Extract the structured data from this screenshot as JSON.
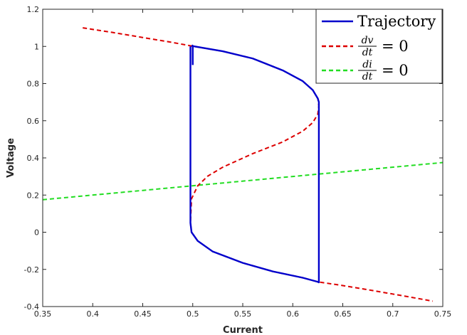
{
  "chart_data": {
    "type": "line",
    "title": "",
    "xlabel": "Current",
    "ylabel": "Voltage",
    "xlim": [
      0.35,
      0.75
    ],
    "ylim": [
      -0.4,
      1.2
    ],
    "xticks": [
      0.35,
      0.4,
      0.45,
      0.5,
      0.55,
      0.6,
      0.65,
      0.7,
      0.75
    ],
    "yticks": [
      -0.4,
      -0.2,
      0,
      0.2,
      0.4,
      0.6,
      0.8,
      1,
      1.2
    ],
    "xtick_labels": [
      "0.35",
      "0.4",
      "0.45",
      "0.5",
      "0.55",
      "0.6",
      "0.65",
      "0.7",
      "0.75"
    ],
    "ytick_labels": [
      "-0.4",
      "-0.2",
      "0",
      "0.2",
      "0.4",
      "0.6",
      "0.8",
      "1",
      "1.2"
    ],
    "grid": false,
    "legend_position": "top-right",
    "series": [
      {
        "name": "Trajectory",
        "color": "#0000cc",
        "style": "solid",
        "x": [
          0.5,
          0.5,
          0.4997,
          0.4997,
          0.5005,
          0.53,
          0.56,
          0.59,
          0.61,
          0.62,
          0.6251,
          0.6261,
          0.6261,
          0.625,
          0.61,
          0.58,
          0.55,
          0.52,
          0.505,
          0.4988,
          0.4977,
          0.4977
        ],
        "y": [
          0.9,
          1.0,
          1.0,
          1.005,
          1.001,
          0.974,
          0.935,
          0.871,
          0.813,
          0.765,
          0.719,
          0.7,
          -0.27,
          -0.267,
          -0.245,
          -0.211,
          -0.165,
          -0.104,
          -0.047,
          0.0,
          0.05,
          1.0
        ]
      },
      {
        "name": "dv/dt = 0",
        "color": "#dd0000",
        "style": "dashed",
        "x": [
          0.39,
          0.42,
          0.45,
          0.48,
          0.5,
          0.53,
          0.56,
          0.59,
          0.61,
          0.62,
          0.6251,
          0.6261,
          0.625,
          0.62,
          0.61,
          0.59,
          0.56,
          0.53,
          0.515,
          0.505,
          0.4988,
          0.4977,
          0.4988,
          0.505,
          0.52,
          0.55,
          0.58,
          0.61,
          0.625,
          0.65,
          0.68,
          0.71,
          0.74
        ],
        "y": [
          1.1,
          1.075,
          1.048,
          1.021,
          1.001,
          0.974,
          0.935,
          0.871,
          0.813,
          0.765,
          0.719,
          0.68,
          0.635,
          0.59,
          0.544,
          0.486,
          0.423,
          0.35,
          0.302,
          0.25,
          0.18,
          0.05,
          0.0,
          -0.047,
          -0.104,
          -0.165,
          -0.211,
          -0.245,
          -0.267,
          -0.287,
          -0.314,
          -0.342,
          -0.371
        ]
      },
      {
        "name": "di/dt = 0",
        "color": "#22dd22",
        "style": "dashed",
        "x": [
          0.35,
          0.75
        ],
        "y": [
          0.175,
          0.375
        ]
      }
    ]
  },
  "legend": {
    "items": [
      {
        "kind": "text",
        "text": "Trajectory",
        "color": "#0000cc",
        "style": "solid"
      },
      {
        "kind": "fraction",
        "num": "dv",
        "den": "dt",
        "rhs": "= 0",
        "color": "#dd0000",
        "style": "dashed"
      },
      {
        "kind": "fraction",
        "num": "di",
        "den": "dt",
        "rhs": "= 0",
        "color": "#22dd22",
        "style": "dashed"
      }
    ]
  }
}
